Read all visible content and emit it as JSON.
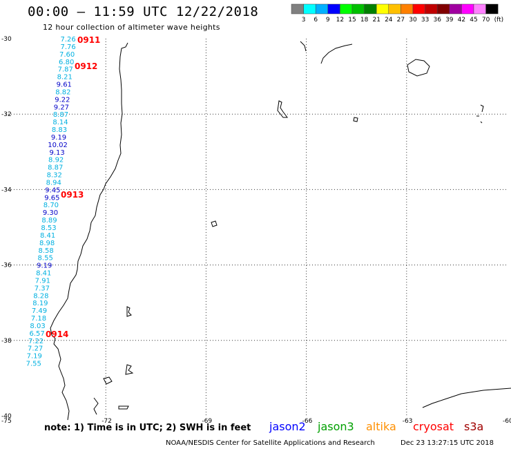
{
  "header": {
    "title": "00:00 – 11:59 UTC 12/22/2018",
    "subtitle": "12 hour collection of altimeter wave heights"
  },
  "color_scale": {
    "unit": "(ft)",
    "bins": [
      {
        "label": "3",
        "color": "#808080"
      },
      {
        "label": "6",
        "color": "#00ffff"
      },
      {
        "label": "9",
        "color": "#00b0ff"
      },
      {
        "label": "12",
        "color": "#0000ff"
      },
      {
        "label": "15",
        "color": "#00ff00"
      },
      {
        "label": "18",
        "color": "#00c000"
      },
      {
        "label": "21",
        "color": "#008000"
      },
      {
        "label": "24",
        "color": "#ffff00"
      },
      {
        "label": "27",
        "color": "#ffc000"
      },
      {
        "label": "30",
        "color": "#ff8000"
      },
      {
        "label": "33",
        "color": "#ff0000"
      },
      {
        "label": "36",
        "color": "#c00000"
      },
      {
        "label": "39",
        "color": "#800000"
      },
      {
        "label": "42",
        "color": "#a000a0"
      },
      {
        "label": "45",
        "color": "#ff00ff"
      },
      {
        "label": "70",
        "color": "#ff80ff"
      },
      {
        "label": "",
        "color": "#000000"
      }
    ]
  },
  "axes": {
    "lat_labels": [
      "-30",
      "-32",
      "-34",
      "-36",
      "-38",
      "-40"
    ],
    "lon_labels": [
      "-75",
      "-72",
      "-69",
      "-66",
      "-63",
      "-60"
    ]
  },
  "time_labels": [
    {
      "text": "0911",
      "lat": -30.0
    },
    {
      "text": "0912",
      "lat": -30.7
    },
    {
      "text": "0913",
      "lat": -34.1
    },
    {
      "text": "0914",
      "lat": -37.8
    }
  ],
  "wave_track": [
    {
      "value": "7.26",
      "lat": -30.0,
      "lon": -73.5,
      "color": "#00b0e0"
    },
    {
      "value": "7.76",
      "lat": -30.2,
      "lon": -73.5,
      "color": "#00b0e0"
    },
    {
      "value": "7.60",
      "lat": -30.4,
      "lon": -73.53,
      "color": "#00b0e0"
    },
    {
      "value": "6.80",
      "lat": -30.6,
      "lon": -73.55,
      "color": "#00b0e0"
    },
    {
      "value": "7.87",
      "lat": -30.8,
      "lon": -73.58,
      "color": "#00b0e0"
    },
    {
      "value": "8.21",
      "lat": -31.0,
      "lon": -73.6,
      "color": "#00b0e0"
    },
    {
      "value": "9.61",
      "lat": -31.2,
      "lon": -73.62,
      "color": "#0000c8"
    },
    {
      "value": "8.82",
      "lat": -31.4,
      "lon": -73.65,
      "color": "#00b0e0"
    },
    {
      "value": "9.22",
      "lat": -31.6,
      "lon": -73.67,
      "color": "#0000c8"
    },
    {
      "value": "9.27",
      "lat": -31.8,
      "lon": -73.7,
      "color": "#0000c8"
    },
    {
      "value": "8.87",
      "lat": -32.0,
      "lon": -73.72,
      "color": "#00b0e0"
    },
    {
      "value": "8.14",
      "lat": -32.2,
      "lon": -73.73,
      "color": "#00b0e0"
    },
    {
      "value": "8.83",
      "lat": -32.4,
      "lon": -73.76,
      "color": "#00b0e0"
    },
    {
      "value": "9.19",
      "lat": -32.6,
      "lon": -73.78,
      "color": "#0000c8"
    },
    {
      "value": "10.02",
      "lat": -32.8,
      "lon": -73.81,
      "color": "#0000c8"
    },
    {
      "value": "9.13",
      "lat": -33.0,
      "lon": -73.83,
      "color": "#0000c8"
    },
    {
      "value": "8.92",
      "lat": -33.2,
      "lon": -73.86,
      "color": "#00b0e0"
    },
    {
      "value": "8.87",
      "lat": -33.4,
      "lon": -73.88,
      "color": "#00b0e0"
    },
    {
      "value": "8.32",
      "lat": -33.6,
      "lon": -73.91,
      "color": "#00b0e0"
    },
    {
      "value": "8.94",
      "lat": -33.8,
      "lon": -73.93,
      "color": "#00b0e0"
    },
    {
      "value": "9.45",
      "lat": -34.0,
      "lon": -73.96,
      "color": "#0000c8"
    },
    {
      "value": "9.65",
      "lat": -34.2,
      "lon": -73.98,
      "color": "#0000c8"
    },
    {
      "value": "8.70",
      "lat": -34.4,
      "lon": -74.01,
      "color": "#00b0e0"
    },
    {
      "value": "9.30",
      "lat": -34.6,
      "lon": -74.03,
      "color": "#0000c8"
    },
    {
      "value": "8.89",
      "lat": -34.8,
      "lon": -74.06,
      "color": "#00b0e0"
    },
    {
      "value": "8.53",
      "lat": -35.0,
      "lon": -74.08,
      "color": "#00b0e0"
    },
    {
      "value": "8.41",
      "lat": -35.2,
      "lon": -74.11,
      "color": "#00b0e0"
    },
    {
      "value": "8.98",
      "lat": -35.4,
      "lon": -74.13,
      "color": "#00b0e0"
    },
    {
      "value": "8.58",
      "lat": -35.6,
      "lon": -74.16,
      "color": "#00b0e0"
    },
    {
      "value": "8.55",
      "lat": -35.8,
      "lon": -74.18,
      "color": "#00b0e0"
    },
    {
      "value": "9.19",
      "lat": -36.0,
      "lon": -74.21,
      "color": "#0000c8"
    },
    {
      "value": "8.41",
      "lat": -36.2,
      "lon": -74.23,
      "color": "#00b0e0"
    },
    {
      "value": "7.91",
      "lat": -36.4,
      "lon": -74.26,
      "color": "#00b0e0"
    },
    {
      "value": "7.37",
      "lat": -36.6,
      "lon": -74.28,
      "color": "#00b0e0"
    },
    {
      "value": "8.28",
      "lat": -36.8,
      "lon": -74.31,
      "color": "#00b0e0"
    },
    {
      "value": "8.19",
      "lat": -37.0,
      "lon": -74.33,
      "color": "#00b0e0"
    },
    {
      "value": "7.49",
      "lat": -37.2,
      "lon": -74.36,
      "color": "#00b0e0"
    },
    {
      "value": "7.18",
      "lat": -37.4,
      "lon": -74.38,
      "color": "#00b0e0"
    },
    {
      "value": "8.03",
      "lat": -37.6,
      "lon": -74.41,
      "color": "#00b0e0"
    },
    {
      "value": "6.57",
      "lat": -37.8,
      "lon": -74.43,
      "color": "#00b0e0"
    },
    {
      "value": "7.22",
      "lat": -38.0,
      "lon": -74.46,
      "color": "#00b0e0"
    },
    {
      "value": "7.27",
      "lat": -38.2,
      "lon": -74.48,
      "color": "#00b0e0"
    },
    {
      "value": "7.19",
      "lat": -38.4,
      "lon": -74.51,
      "color": "#00b0e0"
    },
    {
      "value": "7.55",
      "lat": -38.6,
      "lon": -74.53,
      "color": "#00b0e0"
    }
  ],
  "footer": {
    "note": "note:  1) Time is in UTC;  2) SWH is in feet",
    "credit": "NOAA/NESDIS Center for Satellite Applications and Research",
    "timestamp": "Dec 23 13:27:15 UTC 2018"
  },
  "satellites": [
    {
      "name": "jason2",
      "color": "#0000ff"
    },
    {
      "name": "jason3",
      "color": "#00a000"
    },
    {
      "name": "altika",
      "color": "#ff9000"
    },
    {
      "name": "cryosat",
      "color": "#ff0000"
    },
    {
      "name": "s3a",
      "color": "#a00000"
    }
  ]
}
